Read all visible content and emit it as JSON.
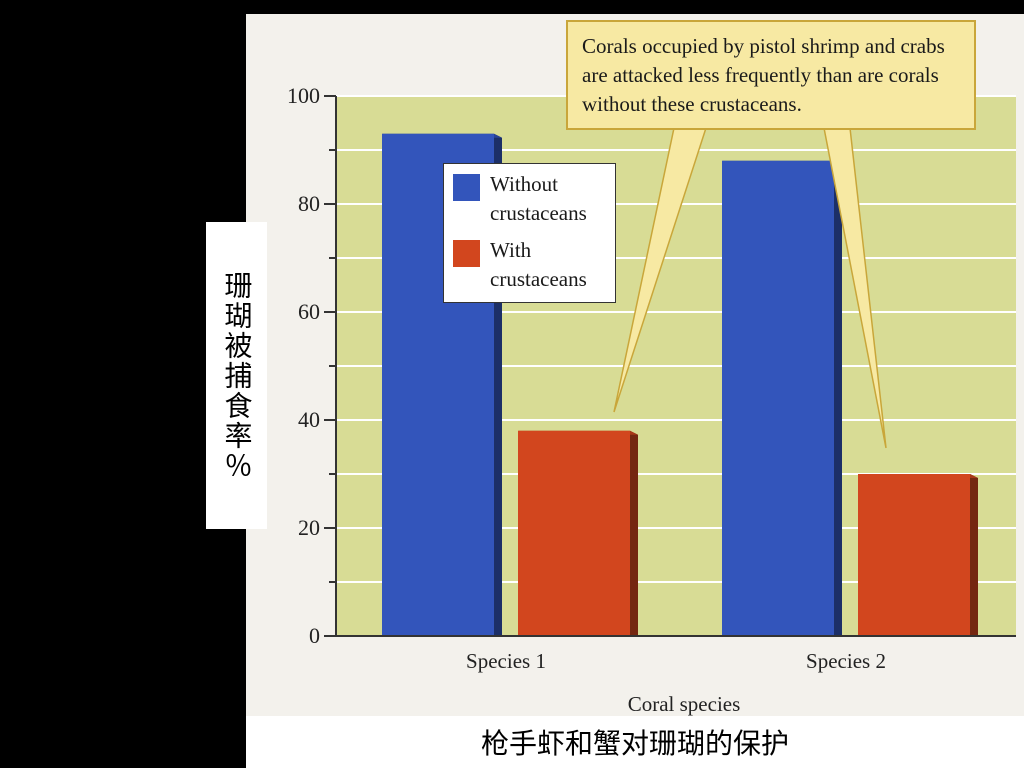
{
  "caption": "枪手虾和蟹对珊瑚的保护",
  "callout": "Corals occupied by pistol shrimp and crabs are attacked less frequently than are corals without these crustaceans.",
  "colors": {
    "plot_bg": "#d8dc95",
    "without": "#3355bb",
    "with": "#d2461e"
  },
  "chart_data": {
    "type": "bar",
    "categories": [
      "Species 1",
      "Species 2"
    ],
    "series": [
      {
        "name": "Without crustaceans",
        "values": [
          93,
          88
        ]
      },
      {
        "name": "With crustaceans",
        "values": [
          38,
          30
        ]
      }
    ],
    "xlabel": "Coral species",
    "ylabel": "珊瑚被捕食率％",
    "ylim": [
      0,
      100
    ],
    "yticks": [
      0,
      20,
      40,
      60,
      80,
      100
    ],
    "legend_position": "top-left",
    "grid": true
  }
}
